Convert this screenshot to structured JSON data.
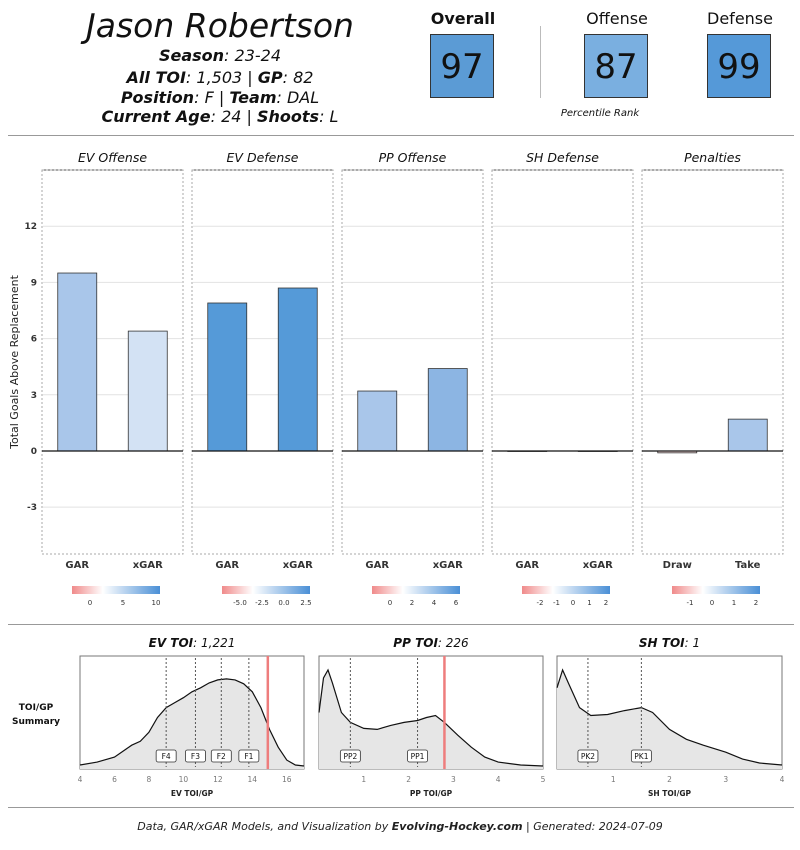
{
  "player": {
    "name": "Jason Robertson",
    "season_label": "Season",
    "season": "23-24",
    "toi_label": "All TOI",
    "toi": "1,503",
    "gp_label": "GP",
    "gp": "82",
    "position_label": "Position",
    "position": "F",
    "team_label": "Team",
    "team": "DAL",
    "age_label": "Current Age",
    "age": "24",
    "shoots_label": "Shoots",
    "shoots": "L"
  },
  "ranks": {
    "overall_label": "Overall",
    "overall": "97",
    "overall_color": "#5b9bd5",
    "offense_label": "Offense",
    "offense": "87",
    "offense_color": "#7aafe0",
    "defense_label": "Defense",
    "defense": "99",
    "defense_color": "#5599d8",
    "caption": "Percentile Rank"
  },
  "chart_data": [
    {
      "type": "bar",
      "ylabel": "Total Goals Above Replacement",
      "ylim": [
        -5.5,
        15
      ],
      "yticks": [
        -3,
        0,
        3,
        6,
        9,
        12
      ],
      "grid": true,
      "panels": [
        {
          "title": "EV Offense",
          "categories": [
            "GAR",
            "xGAR"
          ],
          "values": [
            9.5,
            6.4
          ],
          "colors": [
            "#a9c6ea",
            "#d3e2f4"
          ],
          "legend_ticks": [
            "0",
            "5",
            "10"
          ]
        },
        {
          "title": "EV Defense",
          "categories": [
            "GAR",
            "xGAR"
          ],
          "values": [
            7.9,
            8.7
          ],
          "colors": [
            "#559ad8",
            "#559ad8"
          ],
          "legend_ticks": [
            "-5.0",
            "-2.5",
            "0.0",
            "2.5"
          ]
        },
        {
          "title": "PP Offense",
          "categories": [
            "GAR",
            "xGAR"
          ],
          "values": [
            3.2,
            4.4
          ],
          "colors": [
            "#a9c6ea",
            "#8cb5e3"
          ],
          "legend_ticks": [
            "0",
            "2",
            "4",
            "6"
          ]
        },
        {
          "title": "SH Defense",
          "categories": [
            "GAR",
            "xGAR"
          ],
          "values": [
            0,
            0
          ],
          "colors": [
            "#ffffff",
            "#ffffff"
          ],
          "legend_ticks": [
            "-2",
            "-1",
            "0",
            "1",
            "2"
          ]
        },
        {
          "title": "Penalties",
          "categories": [
            "Draw",
            "Take"
          ],
          "values": [
            -0.1,
            1.7
          ],
          "colors": [
            "#f8dede",
            "#a9c6ea"
          ],
          "legend_ticks": [
            "-1",
            "0",
            "1",
            "2"
          ]
        }
      ]
    },
    {
      "type": "area",
      "row_label": "TOI/GP\nSummary",
      "panels": [
        {
          "title_label": "EV TOI",
          "title_value": "1,221",
          "xlabel": "EV TOI/GP",
          "xlim": [
            4,
            17
          ],
          "xticks": [
            4,
            6,
            8,
            10,
            12,
            14,
            16
          ],
          "density": [
            [
              4,
              0.02
            ],
            [
              5,
              0.05
            ],
            [
              6,
              0.1
            ],
            [
              7,
              0.22
            ],
            [
              7.5,
              0.26
            ],
            [
              8,
              0.35
            ],
            [
              8.5,
              0.5
            ],
            [
              9,
              0.6
            ],
            [
              9.5,
              0.65
            ],
            [
              10,
              0.7
            ],
            [
              10.5,
              0.76
            ],
            [
              11,
              0.8
            ],
            [
              11.5,
              0.85
            ],
            [
              12,
              0.88
            ],
            [
              12.5,
              0.89
            ],
            [
              13,
              0.88
            ],
            [
              13.5,
              0.84
            ],
            [
              14,
              0.76
            ],
            [
              14.5,
              0.6
            ],
            [
              15,
              0.38
            ],
            [
              15.5,
              0.2
            ],
            [
              16,
              0.07
            ],
            [
              16.5,
              0.02
            ],
            [
              17,
              0.01
            ]
          ],
          "markers": [
            {
              "label": "F4",
              "x": 9
            },
            {
              "label": "F3",
              "x": 10.7
            },
            {
              "label": "F2",
              "x": 12.2
            },
            {
              "label": "F1",
              "x": 13.8
            }
          ],
          "player_value": 14.9
        },
        {
          "title_label": "PP TOI",
          "title_value": "226",
          "xlabel": "PP TOI/GP",
          "xlim": [
            0,
            5
          ],
          "xticks": [
            1,
            2,
            3,
            4,
            5
          ],
          "density": [
            [
              0,
              0.55
            ],
            [
              0.1,
              0.9
            ],
            [
              0.2,
              0.98
            ],
            [
              0.3,
              0.85
            ],
            [
              0.5,
              0.55
            ],
            [
              0.7,
              0.45
            ],
            [
              1,
              0.39
            ],
            [
              1.3,
              0.38
            ],
            [
              1.6,
              0.42
            ],
            [
              1.9,
              0.45
            ],
            [
              2.2,
              0.47
            ],
            [
              2.4,
              0.5
            ],
            [
              2.6,
              0.52
            ],
            [
              2.8,
              0.45
            ],
            [
              3.1,
              0.32
            ],
            [
              3.4,
              0.2
            ],
            [
              3.7,
              0.1
            ],
            [
              4,
              0.05
            ],
            [
              4.5,
              0.02
            ],
            [
              5,
              0.01
            ]
          ],
          "markers": [
            {
              "label": "PP2",
              "x": 0.7
            },
            {
              "label": "PP1",
              "x": 2.2
            }
          ],
          "player_value": 2.8
        },
        {
          "title_label": "SH TOI",
          "title_value": "1",
          "xlabel": "SH TOI/GP",
          "xlim": [
            0,
            4
          ],
          "xticks": [
            1,
            2,
            3,
            4
          ],
          "density": [
            [
              0,
              0.8
            ],
            [
              0.1,
              0.98
            ],
            [
              0.2,
              0.85
            ],
            [
              0.4,
              0.6
            ],
            [
              0.6,
              0.52
            ],
            [
              0.9,
              0.53
            ],
            [
              1.2,
              0.57
            ],
            [
              1.5,
              0.6
            ],
            [
              1.7,
              0.55
            ],
            [
              2,
              0.38
            ],
            [
              2.3,
              0.28
            ],
            [
              2.6,
              0.22
            ],
            [
              3,
              0.15
            ],
            [
              3.3,
              0.08
            ],
            [
              3.6,
              0.04
            ],
            [
              4,
              0.02
            ]
          ],
          "markers": [
            {
              "label": "PK2",
              "x": 0.55
            },
            {
              "label": "PK1",
              "x": 1.5
            }
          ],
          "player_value": null
        }
      ]
    }
  ],
  "footer": {
    "text_before": "Data, GAR/xGAR Models, and Visualization by",
    "brand": "Evolving-Hockey.com",
    "text_after": " | Generated: 2024-07-09"
  }
}
